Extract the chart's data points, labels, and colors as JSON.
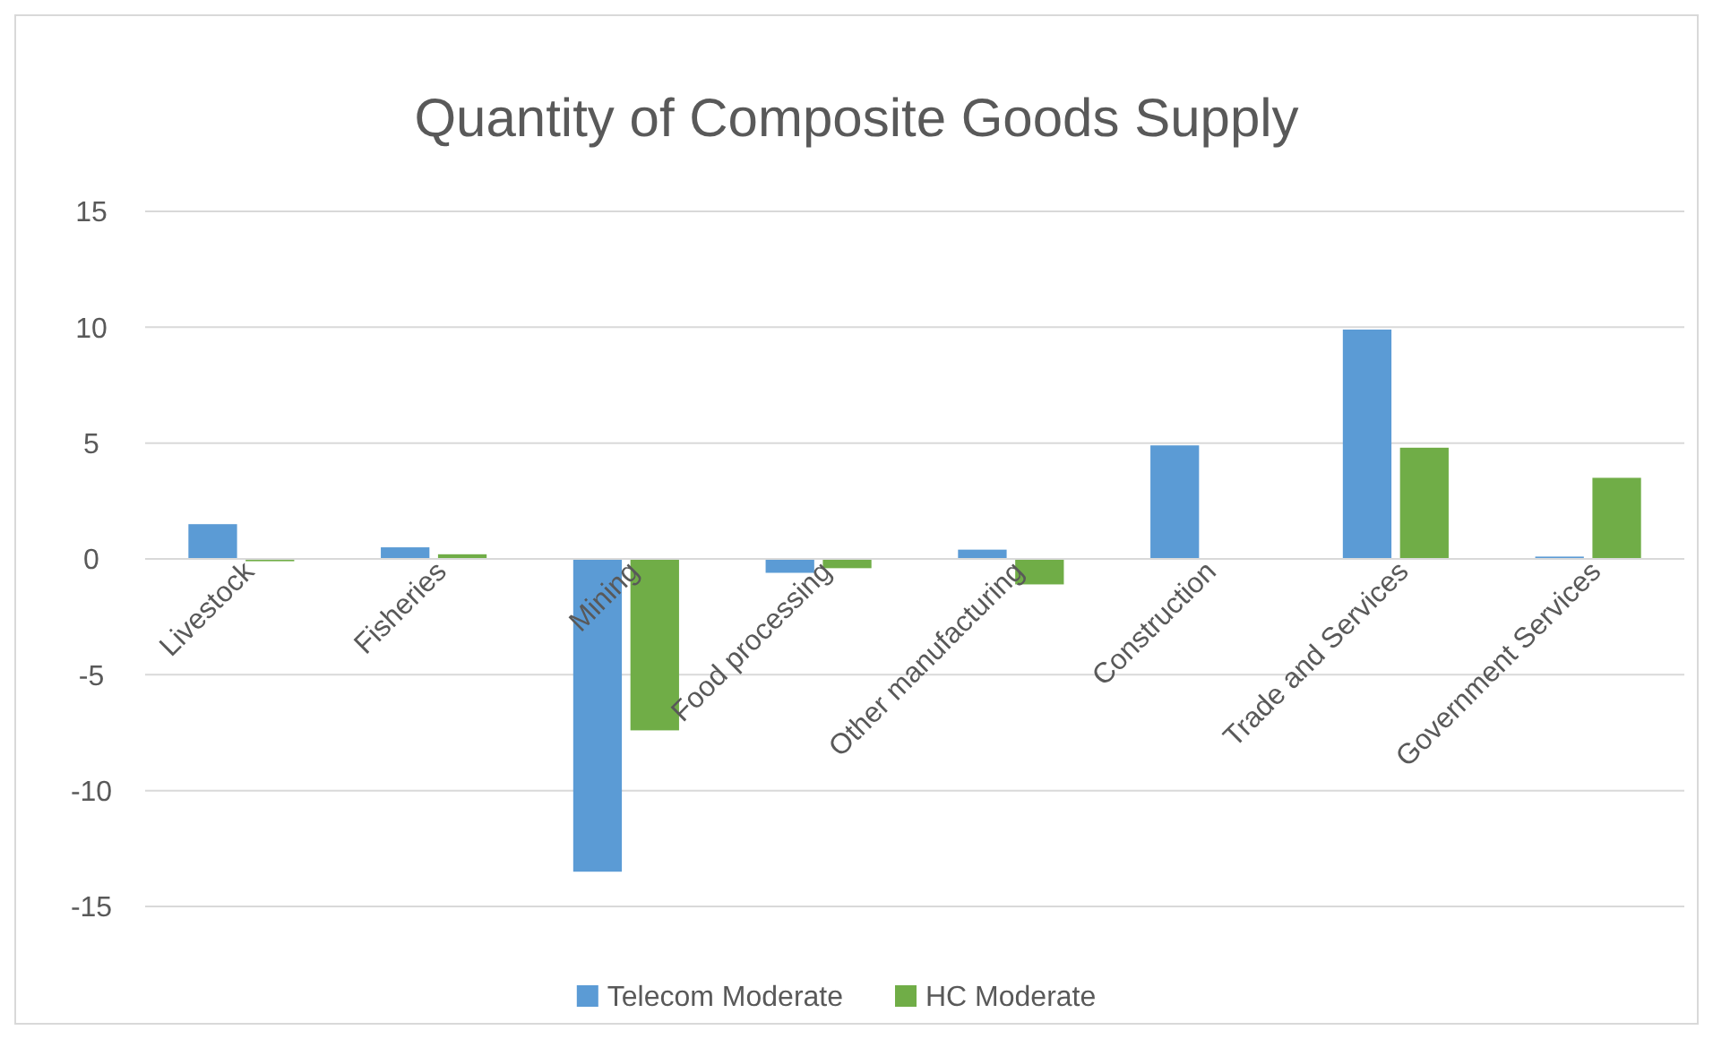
{
  "chart_data": {
    "type": "bar",
    "title": "Quantity of Composite Goods Supply",
    "categories": [
      "Livestock",
      "Fisheries",
      "Mining",
      "Food processing",
      "Other manufacturing",
      "Construction",
      "Trade and Services",
      "Government Services"
    ],
    "series": [
      {
        "name": "Telecom Moderate",
        "color": "#5b9bd5",
        "values": [
          1.5,
          0.5,
          -13.5,
          -0.6,
          0.4,
          4.9,
          9.9,
          0.1
        ]
      },
      {
        "name": "HC Moderate",
        "color": "#70ad47",
        "values": [
          -0.1,
          0.2,
          -7.4,
          -0.4,
          -1.1,
          0,
          4.8,
          3.5
        ]
      }
    ],
    "ylim": [
      -15,
      15
    ],
    "yticks": [
      -15,
      -10,
      -5,
      0,
      5,
      10,
      15
    ],
    "grid": "y",
    "legend": "bottom"
  }
}
